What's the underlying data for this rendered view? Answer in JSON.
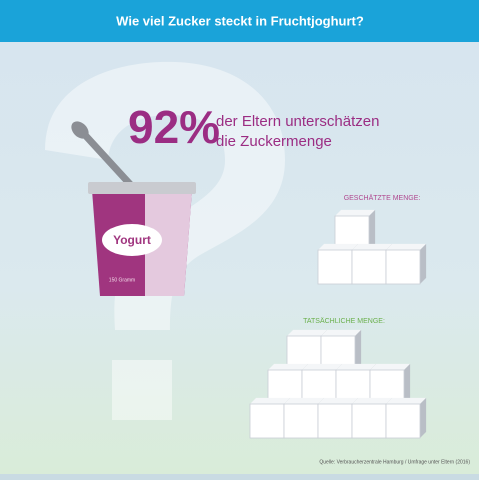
{
  "header": {
    "title": "Wie viel Zucker steckt in Fruchtjoghurt?"
  },
  "headline": {
    "percent": "92%",
    "line1": "der Eltern unterschätzen",
    "line2": "die Zuckermenge"
  },
  "yogurt": {
    "label": "Yogurt",
    "weight": "150 Gramm"
  },
  "estimated": {
    "label": "GESCHÄTZTE MENGE:"
  },
  "actual": {
    "label": "TATSÄCHLICHE MENGE:"
  },
  "footer": {
    "source": "Quelle: Verbraucherzentrale Hamburg / Umfrage unter Eltern (2016)"
  }
}
